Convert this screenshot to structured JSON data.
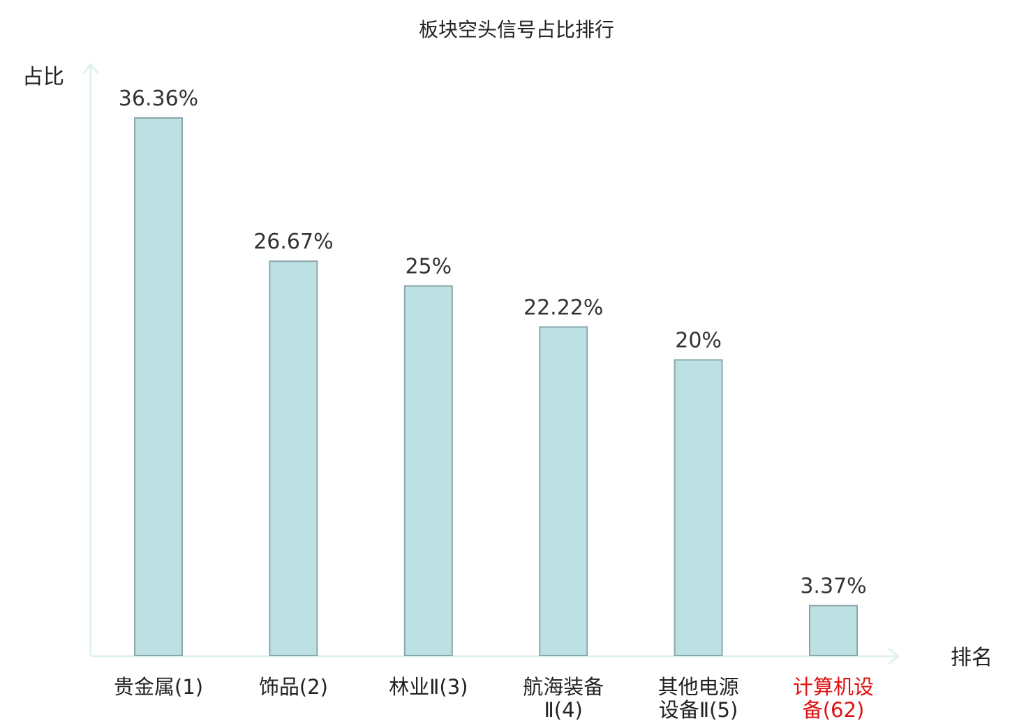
{
  "chart_data": {
    "type": "bar",
    "title": "板块空头信号占比排行",
    "ylabel": "占比",
    "xlabel": "排名",
    "ylim": [
      0,
      36.36
    ],
    "grid": false,
    "legend": "none",
    "categories": [
      {
        "lines": [
          "贵金属(1)"
        ],
        "highlight": false
      },
      {
        "lines": [
          "饰品(2)"
        ],
        "highlight": false
      },
      {
        "lines": [
          "林业Ⅱ(3)"
        ],
        "highlight": false
      },
      {
        "lines": [
          "航海装备",
          "Ⅱ(4)"
        ],
        "highlight": false
      },
      {
        "lines": [
          "其他电源",
          "设备Ⅱ(5)"
        ],
        "highlight": false
      },
      {
        "lines": [
          "计算机设",
          "备(62)"
        ],
        "highlight": true
      }
    ],
    "values": [
      36.36,
      26.67,
      25,
      22.22,
      20,
      3.37
    ],
    "value_labels": [
      "36.36%",
      "26.67%",
      "25%",
      "22.22%",
      "20%",
      "3.37%"
    ],
    "colors": {
      "bar_fill": "#bde0e3",
      "bar_stroke": "#8aa8ab",
      "axis": "#e0f2f0",
      "text": "#222222",
      "value_text": "#333333",
      "highlight": "#e01010"
    }
  }
}
